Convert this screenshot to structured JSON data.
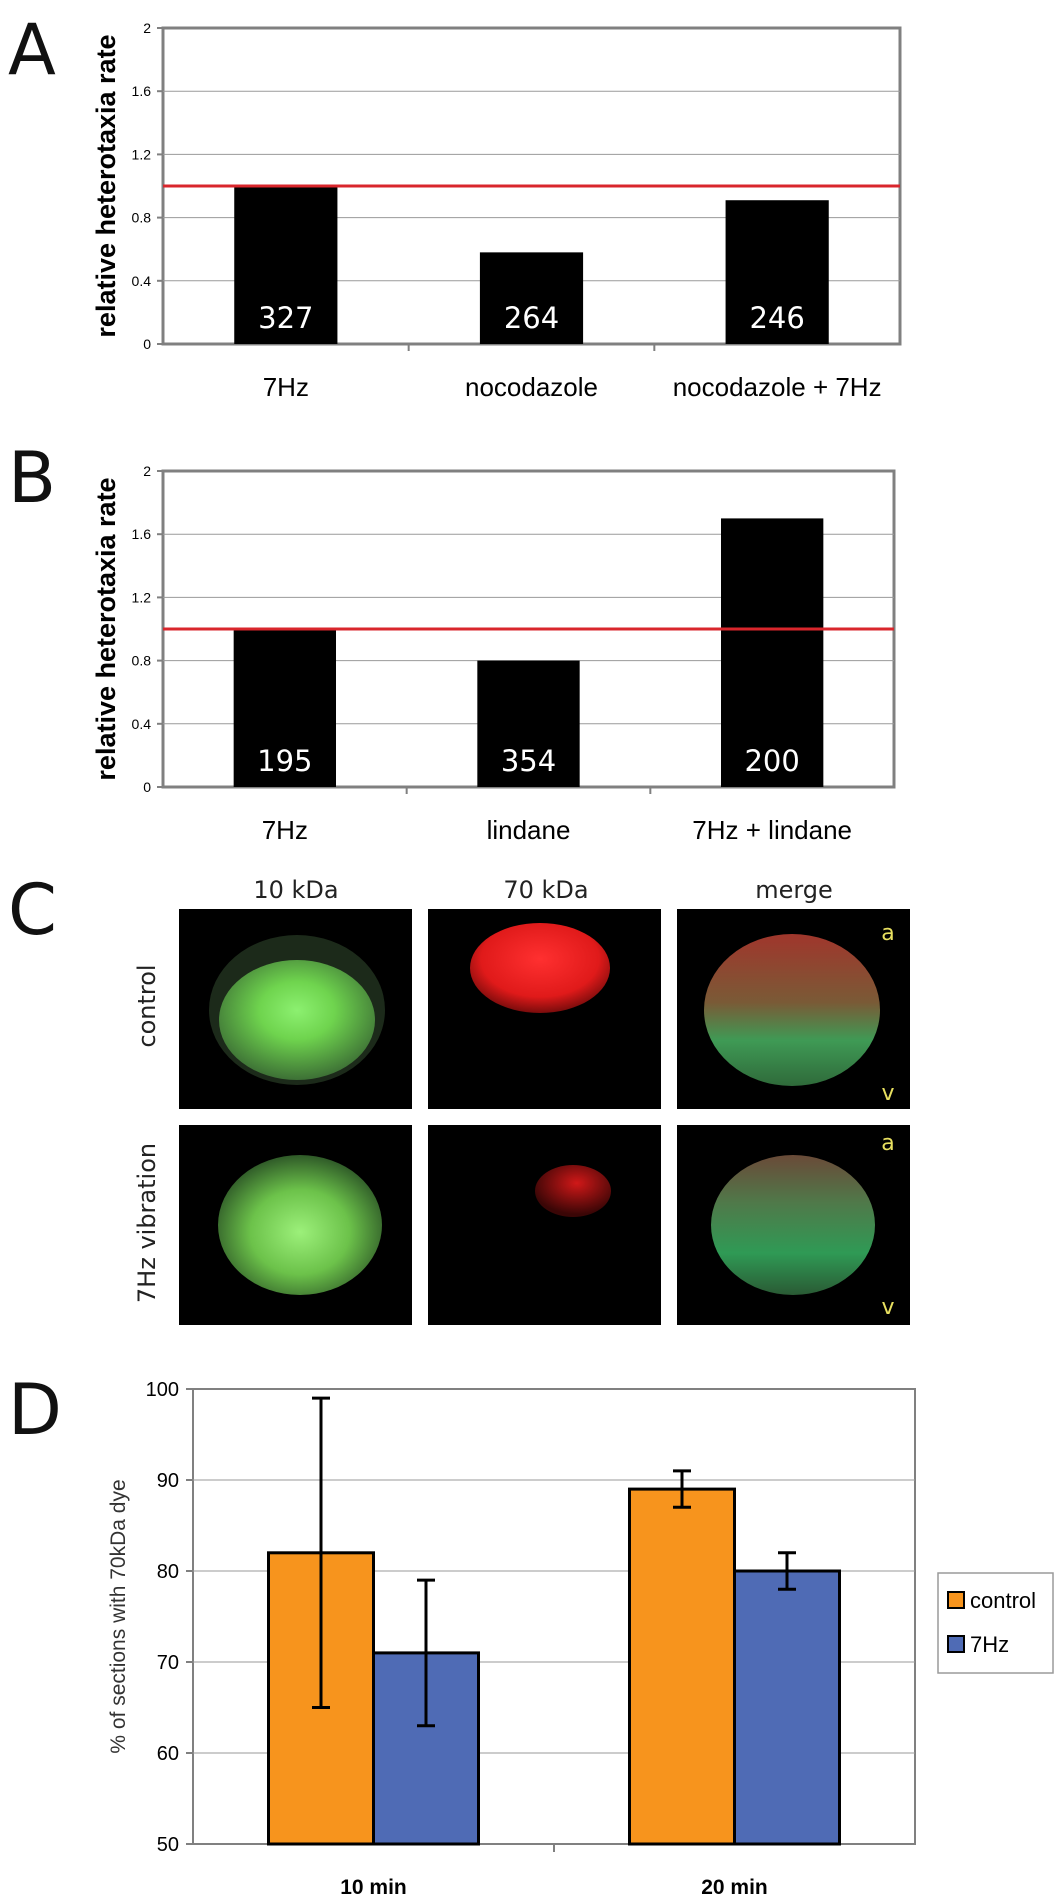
{
  "panels": {
    "A": "A",
    "B": "B",
    "C": "C",
    "D": "D"
  },
  "images": {
    "columns": [
      "10 kDa",
      "70 kDa",
      "merge"
    ],
    "rows": [
      "control",
      "7Hz vibration"
    ],
    "animal_label": "a",
    "vegetal_label": "v",
    "colors": {
      "green": "#7ee05a",
      "red": "#ff2a2a"
    }
  },
  "chart_data": [
    {
      "id": "A",
      "type": "bar",
      "categories": [
        "7Hz",
        "nocodazole",
        "nocodazole + 7Hz"
      ],
      "values": [
        1.0,
        0.58,
        0.91
      ],
      "bar_labels": [
        "327",
        "264",
        "246"
      ],
      "ylabel": "relative heterotaxia rate",
      "ylim": [
        0,
        2
      ],
      "yticks": [
        "0",
        "0.4",
        "0.8",
        "1.2",
        "1.6",
        "2"
      ],
      "reference_line": 1.0,
      "bar_color": "#000000",
      "reference_color": "#d9262c",
      "grid": true
    },
    {
      "id": "B",
      "type": "bar",
      "categories": [
        "7Hz",
        "lindane",
        "7Hz + lindane"
      ],
      "values": [
        1.0,
        0.8,
        1.7
      ],
      "bar_labels": [
        "195",
        "354",
        "200"
      ],
      "ylabel": "relative heterotaxia rate",
      "ylim": [
        0,
        2
      ],
      "yticks": [
        "0",
        "0.4",
        "0.8",
        "1.2",
        "1.6",
        "2"
      ],
      "reference_line": 1.0,
      "bar_color": "#000000",
      "reference_color": "#d9262c",
      "grid": true
    },
    {
      "id": "D",
      "type": "bar",
      "categories": [
        "10 min",
        "20 min"
      ],
      "series": [
        {
          "name": "control",
          "values": [
            82,
            89
          ],
          "err_low": [
            65,
            87
          ],
          "err_high": [
            99,
            91
          ],
          "color": "#f7941d"
        },
        {
          "name": "7Hz",
          "values": [
            71,
            80
          ],
          "err_low": [
            63,
            78
          ],
          "err_high": [
            79,
            82
          ],
          "color": "#4f6bb5"
        }
      ],
      "ylabel": "% of sections with 70kDa dye",
      "ylim": [
        50,
        100
      ],
      "yticks": [
        "50",
        "60",
        "70",
        "80",
        "90",
        "100"
      ],
      "legend": "right",
      "grid": true
    }
  ]
}
